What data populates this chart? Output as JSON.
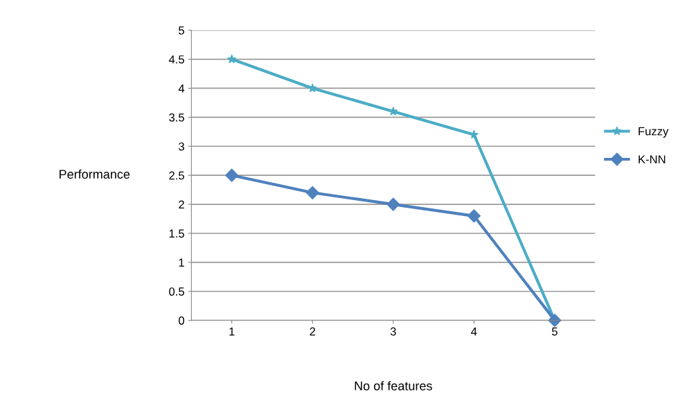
{
  "chart_data": {
    "type": "line",
    "xlabel": "No of features",
    "ylabel": "Performance",
    "categories": [
      "1",
      "2",
      "3",
      "4",
      "5"
    ],
    "series": [
      {
        "name": "Fuzzy",
        "color": "#4bacc6",
        "marker": "star",
        "values": [
          4.5,
          4.0,
          3.6,
          3.2,
          0
        ]
      },
      {
        "name": "K-NN",
        "color": "#4f81bd",
        "marker": "diamond",
        "values": [
          2.5,
          2.2,
          2.0,
          1.8,
          0
        ]
      }
    ],
    "ylim": [
      0,
      5
    ],
    "yticks": [
      0,
      0.5,
      1,
      1.5,
      2,
      2.5,
      3,
      3.5,
      4,
      4.5,
      5
    ],
    "grid": "y",
    "legend": "right",
    "line_style": "solid"
  }
}
